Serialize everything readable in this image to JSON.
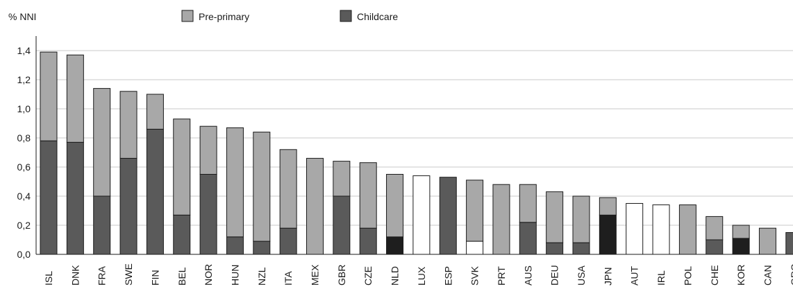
{
  "chart_data": {
    "type": "bar",
    "stacked": true,
    "ylabel": "% NNI",
    "ylim": [
      0,
      1.5
    ],
    "yticks": [
      "0,0",
      "0,2",
      "0,4",
      "0,6",
      "0,8",
      "1,0",
      "1,2",
      "1,4"
    ],
    "grid": true,
    "legend_position": "top",
    "categories": [
      "ISL",
      "DNK",
      "FRA",
      "SWE",
      "FIN",
      "BEL",
      "NOR",
      "HUN",
      "NZL",
      "ITA",
      "MEX",
      "GBR",
      "CZE",
      "NLD",
      "LUX",
      "ESP",
      "SVK",
      "PRT",
      "AUS",
      "DEU",
      "USA",
      "JPN",
      "AUT",
      "IRL",
      "POL",
      "CHE",
      "KOR",
      "CAN",
      "GRC"
    ],
    "series": [
      {
        "name": "Childcare",
        "color": "#5a5a5a",
        "values": [
          0.78,
          0.77,
          0.4,
          0.66,
          0.86,
          0.27,
          0.55,
          0.12,
          0.09,
          0.18,
          0,
          0.4,
          0.18,
          0.12,
          0,
          0.53,
          0.09,
          0,
          0.22,
          0.08,
          0.08,
          0.27,
          0,
          0,
          0,
          0.1,
          0.11,
          0,
          0.15
        ]
      },
      {
        "name": "Pre-primary",
        "color": "#a8a8a8",
        "values": [
          0.61,
          0.6,
          0.74,
          0.46,
          0.24,
          0.66,
          0.33,
          0.75,
          0.75,
          0.54,
          0.66,
          0.24,
          0.45,
          0.43,
          0,
          0,
          0.42,
          0.48,
          0.26,
          0.35,
          0.32,
          0.12,
          0,
          0,
          0.34,
          0.16,
          0.09,
          0.18,
          0
        ]
      }
    ],
    "total_only": {
      "LUX": 0.54,
      "AUT": 0.35,
      "IRL": 0.34
    },
    "highlight_childcare": [
      "NLD",
      "JPN",
      "KOR"
    ],
    "white_childcare": [
      "SVK"
    ]
  }
}
